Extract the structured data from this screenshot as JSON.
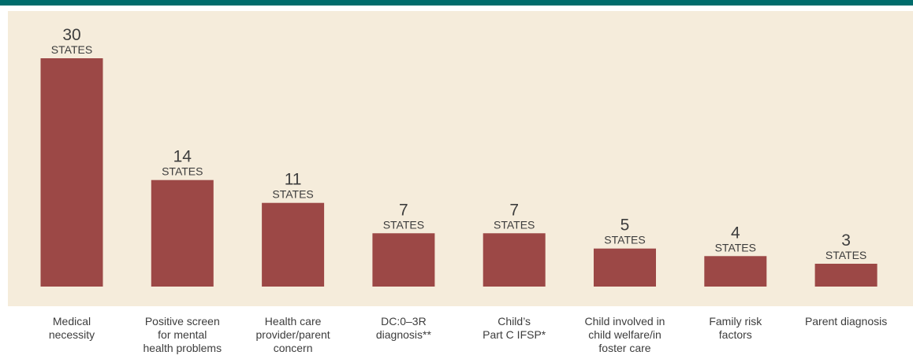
{
  "colors": {
    "header_bar": "#006c6b",
    "plot_background": "#f5ecdb",
    "bar": "#9c4846",
    "text": "#3d3d3d"
  },
  "chart_data": {
    "type": "bar",
    "categories": [
      "Medical\nnecessity",
      "Positive screen\nfor mental\nhealth problems",
      "Health care\nprovider/parent\nconcern",
      "DC:0–3R\ndiagnosis**",
      "Child’s\nPart C IFSP*",
      "Child involved in\nchild welfare/in\nfoster care",
      "Family risk\nfactors",
      "Parent diagnosis"
    ],
    "values": [
      30,
      14,
      11,
      7,
      7,
      5,
      4,
      3
    ],
    "unit_label": "STATES",
    "ylim": [
      0,
      30
    ],
    "grid": false,
    "legend": "none"
  }
}
